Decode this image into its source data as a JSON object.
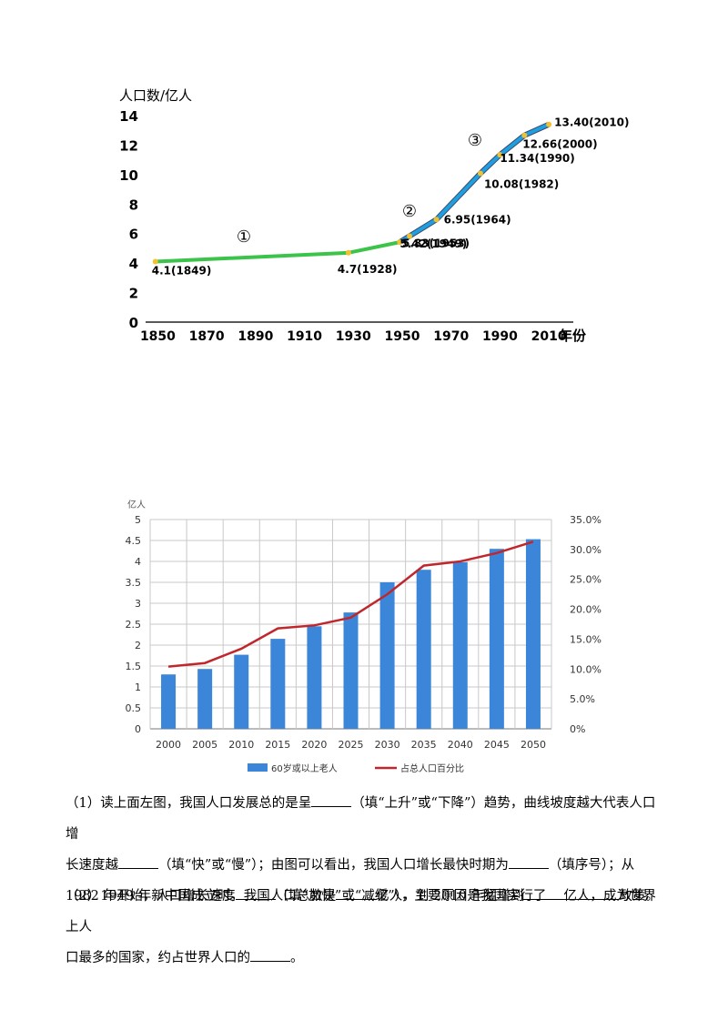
{
  "chart_data": [
    {
      "type": "line",
      "ylabel": "人口数/亿人",
      "xlabel": "年份",
      "xlim": [
        1845,
        2020
      ],
      "ylim": [
        0,
        14
      ],
      "x_ticks": [
        1850,
        1870,
        1890,
        1910,
        1930,
        1950,
        1970,
        1990,
        2010
      ],
      "y_ticks": [
        0,
        2,
        4,
        6,
        8,
        10,
        12,
        14
      ],
      "segment_labels": [
        "①",
        "②",
        "③"
      ],
      "colors": {
        "segment1": "#3cc34a",
        "segment23": "#1f9fe0",
        "outline": "#3b4a6b",
        "marker": "#f2c12e"
      },
      "points": [
        {
          "year": 1849,
          "value": 4.1,
          "label": "4.1(1849)"
        },
        {
          "year": 1928,
          "value": 4.7,
          "label": "4.7(1928)"
        },
        {
          "year": 1949,
          "value": 5.42,
          "label": "5.42(1949)"
        },
        {
          "year": 1953,
          "value": 5.83,
          "label": "5.83(1953)"
        },
        {
          "year": 1964,
          "value": 6.95,
          "label": "6.95(1964)"
        },
        {
          "year": 1982,
          "value": 10.08,
          "label": "10.08(1982)"
        },
        {
          "year": 1990,
          "value": 11.34,
          "label": "11.34(1990)"
        },
        {
          "year": 2000,
          "value": 12.66,
          "label": "12.66(2000)"
        },
        {
          "year": 2010,
          "value": 13.4,
          "label": "13.40(2010)"
        }
      ]
    },
    {
      "type": "bar+line",
      "y_left_label": "亿人",
      "y_left_ticks": [
        "0",
        "0.5",
        "1",
        "1.5",
        "2",
        "2.5",
        "3",
        "3.5",
        "4",
        "4.5",
        "5"
      ],
      "y_right_ticks": [
        "0%",
        "5.0%",
        "10.0%",
        "15.0%",
        "20.0%",
        "25.0%",
        "30.0%",
        "35.0%"
      ],
      "ylim_left": [
        0,
        5
      ],
      "ylim_right": [
        0,
        35
      ],
      "categories": [
        "2000",
        "2005",
        "2010",
        "2015",
        "2020",
        "2025",
        "2030",
        "2035",
        "2040",
        "2045",
        "2050"
      ],
      "series": [
        {
          "name": "60岁或以上老人",
          "type": "bar",
          "color": "#3b86d8",
          "values": [
            1.3,
            1.43,
            1.77,
            2.15,
            2.45,
            2.78,
            3.5,
            3.8,
            3.98,
            4.3,
            4.53
          ]
        },
        {
          "name": "占总人口百分比",
          "type": "line",
          "color": "#c0272d",
          "values": [
            10.4,
            11.0,
            13.4,
            16.8,
            17.3,
            18.6,
            22.5,
            27.3,
            28.0,
            29.4,
            31.3
          ]
        }
      ],
      "legend": "bottom"
    }
  ],
  "questions": {
    "q1_a": "（1）读上面左图，我国人口发展总的是呈",
    "q1_b": "（填“上升”或“下降”）趋势，曲线坡度越大代表人口增",
    "q1_c": "长速度越",
    "q1_d": "（填“快”或“慢”）；由图可以看出，我国人口增长最快时期为",
    "q1_e": "（填序号）；从",
    "q1_f": "1982 年开始，人口增长速度",
    "q1_g": "（填“加快”或“减缓”），主要原因是我国实行了",
    "q1_h": "政策。",
    "q2_a": "（2）1949 年新中国成立时，我国人口总数是",
    "q2_b": "亿人，到 2010 年猛增到",
    "q2_c": "亿人，成为世界上人",
    "q2_d": "口最多的国家，约占世界人口的",
    "q2_e": "。"
  }
}
